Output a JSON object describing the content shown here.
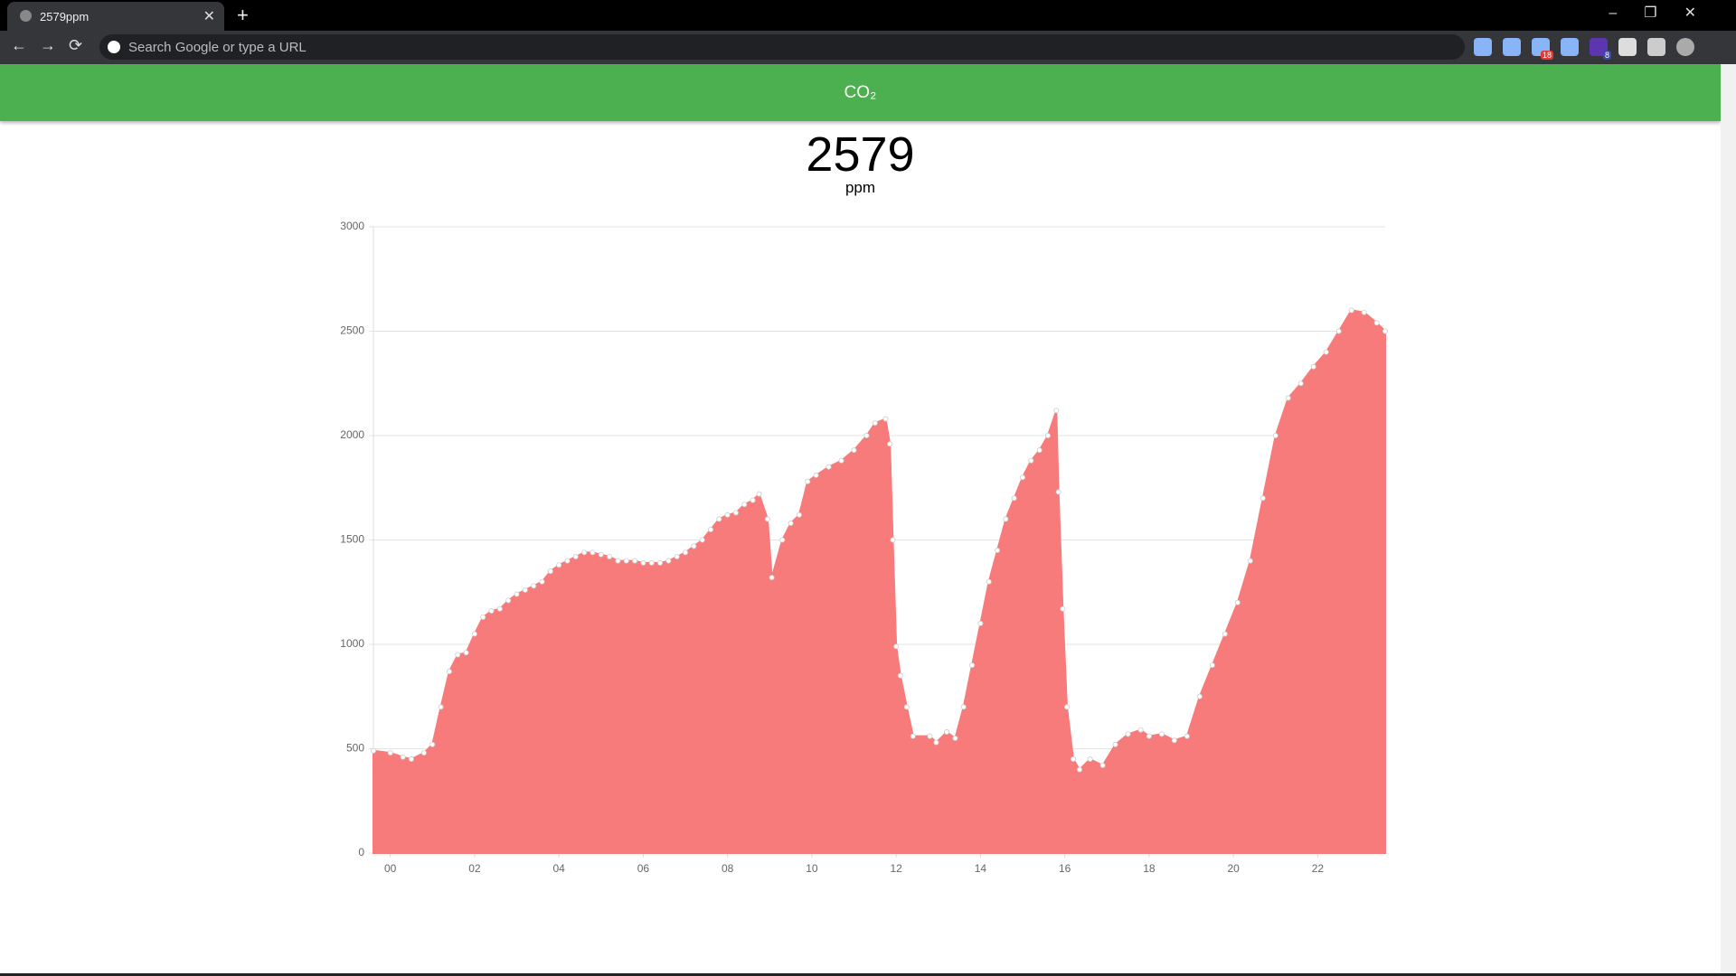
{
  "browser": {
    "tab_title": "2579ppm",
    "address_placeholder": "Search Google or type a URL",
    "badges": [
      "18",
      "8"
    ]
  },
  "header": {
    "title": "CO₂"
  },
  "reading": {
    "value": 2579,
    "unit": "ppm"
  },
  "chart_data": {
    "type": "area",
    "x": [
      -0.4,
      0,
      0.3,
      0.5,
      0.8,
      1.0,
      1.2,
      1.4,
      1.6,
      1.8,
      2.0,
      2.2,
      2.4,
      2.6,
      2.8,
      3.0,
      3.2,
      3.4,
      3.6,
      3.8,
      4.0,
      4.2,
      4.4,
      4.6,
      4.8,
      5.0,
      5.2,
      5.4,
      5.6,
      5.8,
      6.0,
      6.2,
      6.4,
      6.6,
      6.8,
      7.0,
      7.2,
      7.4,
      7.6,
      7.8,
      8.0,
      8.2,
      8.4,
      8.6,
      8.75,
      8.95,
      9.05,
      9.3,
      9.5,
      9.7,
      9.9,
      10.1,
      10.4,
      10.7,
      11.0,
      11.3,
      11.5,
      11.75,
      11.85,
      11.92,
      12.0,
      12.1,
      12.25,
      12.4,
      12.8,
      12.95,
      13.2,
      13.4,
      13.6,
      13.8,
      14.0,
      14.2,
      14.4,
      14.6,
      14.8,
      15.0,
      15.2,
      15.4,
      15.6,
      15.8,
      15.85,
      15.95,
      16.05,
      16.2,
      16.35,
      16.6,
      16.9,
      17.2,
      17.5,
      17.8,
      18.0,
      18.3,
      18.6,
      18.9,
      19.2,
      19.5,
      19.8,
      20.1,
      20.4,
      20.7,
      21.0,
      21.3,
      21.6,
      21.9,
      22.2,
      22.5,
      22.8,
      23.1,
      23.4,
      23.6
    ],
    "series": [
      {
        "color": "#f77b7b",
        "values": [
          490,
          480,
          460,
          450,
          480,
          520,
          700,
          870,
          950,
          960,
          1050,
          1130,
          1160,
          1170,
          1210,
          1240,
          1260,
          1280,
          1300,
          1350,
          1380,
          1400,
          1420,
          1440,
          1440,
          1430,
          1420,
          1400,
          1400,
          1400,
          1390,
          1390,
          1390,
          1400,
          1420,
          1440,
          1470,
          1500,
          1550,
          1600,
          1620,
          1630,
          1670,
          1690,
          1720,
          1600,
          1320,
          1500,
          1580,
          1620,
          1780,
          1810,
          1850,
          1880,
          1930,
          2000,
          2060,
          2080,
          1960,
          1500,
          990,
          850,
          700,
          560,
          560,
          530,
          580,
          550,
          700,
          900,
          1100,
          1300,
          1450,
          1600,
          1700,
          1800,
          1880,
          1930,
          2000,
          2120,
          1730,
          1170,
          700,
          450,
          400,
          450,
          420,
          520,
          570,
          590,
          560,
          570,
          540,
          560,
          750,
          900,
          1050,
          1200,
          1400,
          1700,
          2000,
          2180,
          2250,
          2330,
          2400,
          2500,
          2600,
          2590,
          2540,
          2500
        ]
      }
    ],
    "xlim": [
      -0.4,
      23.6
    ],
    "xticks": [
      {
        "value": 0,
        "label": "00"
      },
      {
        "value": 2,
        "label": "02"
      },
      {
        "value": 4,
        "label": "04"
      },
      {
        "value": 6,
        "label": "06"
      },
      {
        "value": 8,
        "label": "08"
      },
      10,
      12,
      14,
      16,
      18,
      20,
      22
    ],
    "ylim": [
      0,
      3000
    ],
    "yticks": [
      0,
      500,
      1000,
      1500,
      2000,
      2500,
      3000
    ],
    "grid": true
  }
}
